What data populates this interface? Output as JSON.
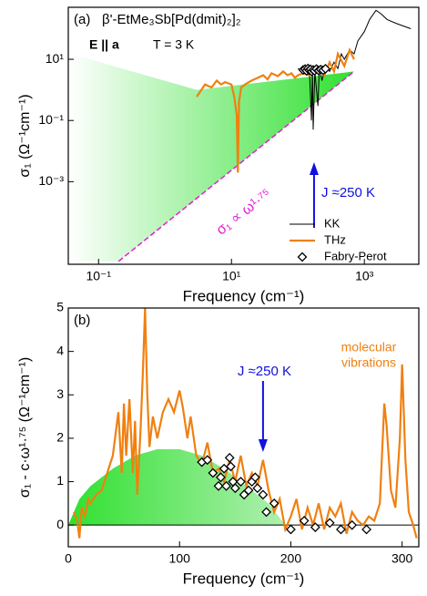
{
  "chart_data": [
    {
      "type": "line",
      "panel": "(a)",
      "xscale": "log",
      "yscale": "log",
      "xlabel": "Frequency (cm⁻¹)",
      "ylabel": "σ₁ (Ω⁻¹cm⁻¹)",
      "xlim": [
        0.035,
        6600
      ],
      "ylim": [
        2e-06,
        500
      ],
      "xticks": [
        {
          "value": 0.1,
          "label": "10⁻¹"
        },
        {
          "value": 10,
          "label": "10¹"
        },
        {
          "value": 1000,
          "label": "10³"
        }
      ],
      "yticks": [
        {
          "value": 0.001,
          "label": "10⁻³"
        },
        {
          "value": 0.1,
          "label": "10⁻¹"
        },
        {
          "value": 10,
          "label": "10¹"
        }
      ],
      "annotations": [
        "β'-EtMe₃Sb[Pd(dmit)₂]₂",
        "E || a",
        "T = 3 K",
        "J ≈250 K",
        "σ₁ ∝ ω¹·⁷⁵"
      ],
      "legend": "lower right",
      "fit": {
        "color": "#e020d0",
        "x": [
          0.2,
          700
        ],
        "values": [
          2.5e-06,
          4
        ]
      },
      "series": [
        {
          "name": "KK",
          "color": "#000000",
          "style": "line",
          "x": [
            100,
            120,
            150,
            160,
            165,
            170,
            180,
            200,
            210,
            230,
            260,
            300,
            350,
            400,
            450,
            500,
            600,
            700,
            800,
            1000,
            1200,
            1500,
            1800,
            2200,
            3000,
            5000
          ],
          "values": [
            5,
            4,
            3,
            0.1,
            5,
            0.05,
            4,
            0.3,
            5,
            2,
            6,
            4,
            8,
            5,
            15,
            10,
            20,
            15,
            40,
            80,
            200,
            400,
            300,
            200,
            150,
            100
          ]
        },
        {
          "name": "THz",
          "color": "#f08010",
          "style": "line",
          "x": [
            3,
            4,
            5,
            6,
            7,
            8,
            10,
            11,
            12,
            12.5,
            13,
            14,
            16,
            20,
            25,
            30,
            35,
            40,
            50,
            60,
            70,
            80,
            90,
            100,
            120,
            150,
            200,
            250,
            300,
            350,
            400,
            500,
            600,
            700
          ],
          "values": [
            0.6,
            1.5,
            1.2,
            2,
            1.5,
            1.8,
            1.5,
            0.6,
            0.15,
            0.002,
            0.4,
            1.2,
            1.5,
            2,
            2.5,
            3,
            2.2,
            3.5,
            2.8,
            4,
            3,
            3.5,
            2.5,
            3,
            3.5,
            3,
            5,
            3,
            8,
            4,
            15,
            6,
            20,
            10
          ]
        },
        {
          "name": "Fabry-Perot",
          "color": "#000000",
          "style": "diamond",
          "x": [
            120,
            128,
            135,
            142,
            148,
            155,
            162,
            170,
            178,
            190,
            205,
            220,
            240,
            260
          ],
          "values": [
            4.5,
            4.8,
            4.2,
            5,
            4.4,
            4.7,
            4,
            4.5,
            4.2,
            4.8,
            4.3,
            4.6,
            4.4,
            4.9
          ]
        }
      ]
    },
    {
      "type": "line",
      "panel": "(b)",
      "xscale": "linear",
      "yscale": "linear",
      "xlabel": "Frequency (cm⁻¹)",
      "ylabel": "σ₁ - c·ω¹·⁷⁵ (Ω⁻¹cm⁻¹)",
      "xlim": [
        0,
        315
      ],
      "ylim": [
        -0.5,
        5
      ],
      "xticks": [
        0,
        100,
        200,
        300
      ],
      "yticks": [
        0,
        1,
        2,
        3,
        4,
        5
      ],
      "annotations": [
        "J ≈250 K",
        [
          "molecular",
          "vibrations"
        ]
      ],
      "hump": {
        "color": "#30e030",
        "x": [
          0,
          10,
          20,
          40,
          60,
          80,
          100,
          120,
          140,
          160,
          180,
          195
        ],
        "values": [
          0,
          0.6,
          0.9,
          1.3,
          1.6,
          1.75,
          1.75,
          1.6,
          1.3,
          0.9,
          0.5,
          0
        ]
      },
      "series": [
        {
          "color": "#f08010",
          "style": "line",
          "x": [
            5,
            8,
            10,
            12,
            15,
            18,
            20,
            25,
            30,
            35,
            40,
            45,
            48,
            50,
            52,
            55,
            58,
            60,
            62,
            65,
            67,
            69,
            71,
            73,
            76,
            80,
            85,
            90,
            95,
            100,
            103,
            107,
            110,
            115,
            120,
            125,
            130,
            135,
            140,
            145,
            150,
            155,
            160,
            165,
            170,
            175,
            180,
            185,
            190,
            195,
            200,
            205,
            210,
            215,
            220,
            225,
            230,
            235,
            240,
            245,
            250,
            255,
            260,
            265,
            270,
            275,
            280,
            284,
            286,
            290,
            294,
            298,
            300,
            303,
            306,
            310,
            313
          ],
          "values": [
            0.3,
            0.1,
            -0.3,
            0.4,
            0.2,
            0.6,
            0.5,
            0.7,
            0.8,
            1.2,
            1.6,
            2.6,
            1.2,
            2.8,
            1.6,
            2.9,
            1.2,
            2.4,
            0.7,
            2.2,
            3.5,
            5.0,
            3.0,
            1.8,
            2.5,
            2.0,
            2.6,
            2.9,
            2.6,
            3.1,
            2.7,
            2.0,
            2.5,
            1.6,
            1.4,
            1.9,
            1.2,
            1.3,
            1.0,
            1.5,
            1.0,
            1.6,
            0.9,
            1.2,
            0.9,
            1.5,
            0.8,
            0.3,
            0.6,
            -0.1,
            0.2,
            0.6,
            -0.1,
            0.4,
            0.0,
            0.5,
            -0.1,
            0.4,
            0.2,
            0.5,
            -0.2,
            0.3,
            0.1,
            0.0,
            0.2,
            0.1,
            0.5,
            2.8,
            2.3,
            0.8,
            0.4,
            2.0,
            3.7,
            1.5,
            0.3,
            0.0,
            -0.3
          ]
        },
        {
          "color": "#000000",
          "style": "diamond",
          "x": [
            120,
            125,
            130,
            135,
            137,
            140,
            142,
            145,
            146,
            148,
            150,
            155,
            158,
            162,
            165,
            168,
            170,
            175,
            178,
            185,
            200,
            212,
            222,
            235,
            245,
            255,
            268
          ],
          "values": [
            1.45,
            1.5,
            1.2,
            0.9,
            1.1,
            1.3,
            0.9,
            1.55,
            1.35,
            1.0,
            0.85,
            1.0,
            0.7,
            0.8,
            1.0,
            1.1,
            0.85,
            0.7,
            0.3,
            0.5,
            -0.1,
            0.1,
            -0.05,
            0.05,
            -0.1,
            0.0,
            -0.1
          ]
        }
      ]
    }
  ]
}
